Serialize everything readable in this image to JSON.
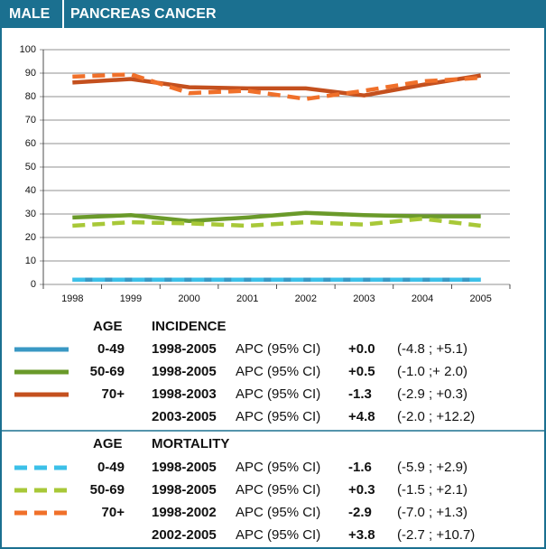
{
  "chart_data": {
    "type": "line",
    "badge": "MALE",
    "title": "PANCREAS CANCER",
    "categories": [
      "1998",
      "1999",
      "2000",
      "2001",
      "2002",
      "2003",
      "2004",
      "2005"
    ],
    "ylim": [
      0,
      100
    ],
    "yticks": [
      0,
      10,
      20,
      30,
      40,
      50,
      60,
      70,
      80,
      90,
      100
    ],
    "grid": true,
    "apc_label": "APC (95% CI)",
    "groups": [
      {
        "age_header": "AGE",
        "title": "INCIDENCE"
      },
      {
        "age_header": "AGE",
        "title": "MORTALITY"
      }
    ],
    "series": [
      {
        "name": "0-49",
        "color": "#3a98c4",
        "dashed": false,
        "values": [
          2,
          2,
          2,
          2,
          2,
          2,
          2,
          2
        ],
        "rows": [
          {
            "period": "1998-2005",
            "apc": "+0.0",
            "ci": "(-4.8 ; +5.1)"
          }
        ]
      },
      {
        "name": "50-69",
        "color": "#6a9a2a",
        "dashed": false,
        "values": [
          28.5,
          29.5,
          27,
          28.5,
          30.5,
          29.5,
          29,
          29
        ],
        "rows": [
          {
            "period": "1998-2005",
            "apc": "+0.5",
            "ci": "(-1.0 ;+ 2.0)"
          }
        ]
      },
      {
        "name": "70+",
        "color": "#c4501e",
        "dashed": false,
        "values": [
          86,
          87.5,
          84,
          83.5,
          83.5,
          80.5,
          85,
          89
        ],
        "rows": [
          {
            "period": "1998-2003",
            "apc": "-1.3",
            "ci": "(-2.9 ; +0.3)"
          },
          {
            "period": "2003-2005",
            "apc": "+4.8",
            "ci": "(-2.0 ; +12.2)"
          }
        ]
      },
      {
        "name": "0-49",
        "color": "#3cc0e8",
        "dashed": true,
        "values": [
          2,
          2,
          2,
          2,
          2,
          2,
          2,
          2
        ],
        "rows": [
          {
            "period": "1998-2005",
            "apc": "-1.6",
            "ci": "(-5.9 ; +2.9)"
          }
        ]
      },
      {
        "name": "50-69",
        "color": "#a8c838",
        "dashed": true,
        "values": [
          25,
          26.5,
          26,
          25,
          26.5,
          25.5,
          28,
          25
        ],
        "rows": [
          {
            "period": "1998-2005",
            "apc": "+0.3",
            "ci": "(-1.5 ; +2.1)"
          }
        ]
      },
      {
        "name": "70+",
        "color": "#f0702a",
        "dashed": true,
        "values": [
          88.5,
          89.5,
          81.5,
          82.5,
          79,
          82.5,
          86.5,
          88
        ],
        "rows": [
          {
            "period": "1998-2002",
            "apc": "-2.9",
            "ci": "(-7.0 ; +1.3)"
          },
          {
            "period": "2002-2005",
            "apc": "+3.8",
            "ci": "(-2.7 ; +10.7)"
          }
        ]
      }
    ]
  }
}
